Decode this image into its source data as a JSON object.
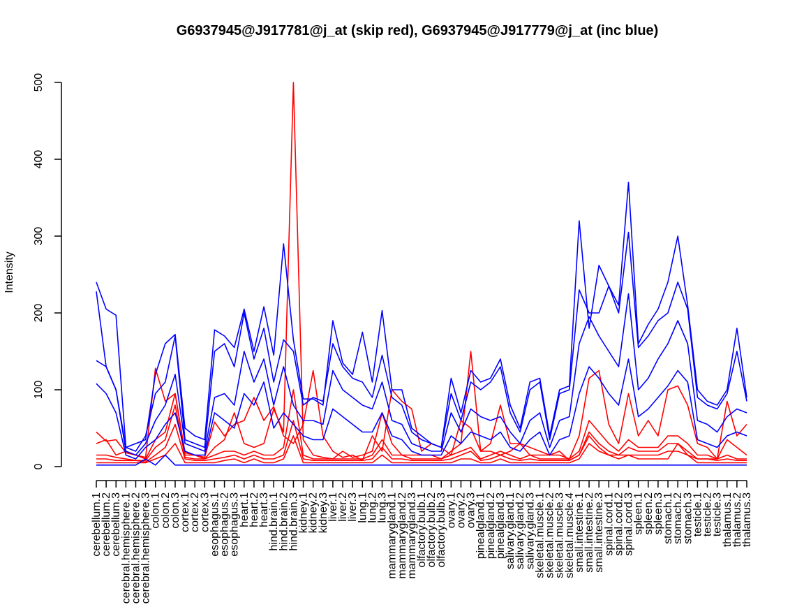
{
  "chart_data": {
    "type": "line",
    "title": "G6937945@J917781@j_at (skip red), G6937945@J917779@j_at (inc blue)",
    "xlabel": "",
    "ylabel": "Intensity",
    "ylim": [
      0,
      500
    ],
    "yticks": [
      0,
      100,
      200,
      300,
      400,
      500
    ],
    "grid": false,
    "legend": "none",
    "colors": {
      "skip": "#ff0000",
      "inc": "#0000ff",
      "axis": "#000000"
    },
    "categories": [
      "cerebellum.1",
      "cerebellum.2",
      "cerebellum.3",
      "cerebral.hemisphere.1",
      "cerebral.hemisphere.2",
      "cerebral.hemisphere.3",
      "colon.1",
      "colon.2",
      "colon.3",
      "cortex.1",
      "cortex.2",
      "cortex.3",
      "esophagus.1",
      "esophagus.2",
      "esophagus.3",
      "heart.1",
      "heart.2",
      "heart.3",
      "hind.brain.1",
      "hind.brain.2",
      "hind.brain.3",
      "kidney.1",
      "kidney.2",
      "kidney.3",
      "liver.1",
      "liver.2",
      "liver.3",
      "lung.1",
      "lung.2",
      "lung.3",
      "mammarygland.1",
      "mammarygland.2",
      "mammarygland.3",
      "olfactory.bulb.1",
      "olfactory.bulb.2",
      "olfactory.bulb.3",
      "ovary.1",
      "ovary.2",
      "ovary.3",
      "pinealgland.1",
      "pinealgland.2",
      "pinealgland.3",
      "salivary.gland.1",
      "salivary.gland.2",
      "salivary.gland.3",
      "skeletal.muscle.1",
      "skeletal.muscle.2",
      "skeletal.muscle.3",
      "skeletal.muscle.4",
      "small.intestine.1",
      "small.intestine.2",
      "small.intestine.3",
      "spinal.cord.1",
      "spinal.cord.2",
      "spinal.cord.3",
      "spleen.1",
      "spleen.2",
      "spleen.3",
      "stomach.1",
      "stomach.2",
      "stomach.3",
      "testicle.1",
      "testicle.2",
      "testicle.3",
      "thalamus.1",
      "thalamus.2",
      "thalamus.3"
    ],
    "series": [
      {
        "group": "skip",
        "values": [
          45,
          33,
          35,
          18,
          15,
          12,
          128,
          85,
          95,
          18,
          15,
          12,
          58,
          40,
          55,
          60,
          90,
          60,
          78,
          40,
          30,
          55,
          125,
          40,
          20,
          12,
          15,
          8,
          40,
          20,
          100,
          85,
          75,
          20,
          30,
          25,
          15,
          60,
          50,
          20,
          20,
          15,
          20,
          30,
          15,
          15,
          15,
          20,
          8,
          15,
          40,
          25,
          15,
          15,
          15,
          10,
          10,
          10,
          10,
          30,
          15,
          10,
          10,
          10,
          85,
          40,
          55
        ]
      },
      {
        "group": "skip",
        "values": [
          30,
          35,
          15,
          20,
          15,
          10,
          35,
          45,
          95,
          15,
          15,
          10,
          25,
          35,
          70,
          30,
          25,
          30,
          75,
          45,
          500,
          35,
          15,
          12,
          10,
          20,
          12,
          15,
          20,
          70,
          30,
          15,
          15,
          15,
          15,
          10,
          20,
          30,
          150,
          20,
          30,
          80,
          30,
          30,
          25,
          20,
          15,
          15,
          10,
          40,
          115,
          125,
          55,
          30,
          95,
          40,
          60,
          40,
          100,
          105,
          80,
          30,
          25,
          10,
          35,
          25,
          15
        ]
      },
      {
        "group": "skip",
        "values": [
          15,
          15,
          12,
          10,
          8,
          8,
          25,
          35,
          80,
          12,
          10,
          10,
          15,
          20,
          20,
          15,
          20,
          15,
          15,
          25,
          100,
          15,
          10,
          10,
          10,
          10,
          10,
          10,
          15,
          35,
          15,
          15,
          10,
          10,
          10,
          10,
          15,
          20,
          25,
          10,
          15,
          20,
          15,
          10,
          15,
          10,
          10,
          10,
          10,
          20,
          60,
          45,
          30,
          20,
          35,
          25,
          25,
          25,
          40,
          40,
          30,
          15,
          15,
          10,
          15,
          10,
          10
        ]
      },
      {
        "group": "skip",
        "values": [
          10,
          10,
          8,
          8,
          8,
          6,
          15,
          25,
          55,
          10,
          8,
          8,
          10,
          12,
          15,
          10,
          15,
          10,
          10,
          15,
          60,
          10,
          8,
          8,
          8,
          8,
          8,
          8,
          10,
          25,
          10,
          10,
          8,
          8,
          8,
          8,
          10,
          15,
          20,
          8,
          10,
          15,
          10,
          8,
          10,
          8,
          8,
          8,
          8,
          15,
          45,
          30,
          20,
          15,
          25,
          20,
          20,
          20,
          30,
          30,
          20,
          10,
          10,
          8,
          10,
          8,
          8
        ]
      },
      {
        "group": "skip",
        "values": [
          5,
          5,
          5,
          5,
          5,
          5,
          10,
          15,
          30,
          5,
          5,
          5,
          5,
          8,
          10,
          5,
          10,
          5,
          5,
          10,
          40,
          5,
          5,
          5,
          5,
          5,
          5,
          5,
          5,
          15,
          5,
          5,
          5,
          5,
          5,
          5,
          5,
          10,
          10,
          5,
          5,
          10,
          5,
          5,
          5,
          5,
          5,
          5,
          5,
          10,
          30,
          20,
          15,
          10,
          15,
          15,
          15,
          15,
          20,
          20,
          15,
          5,
          5,
          5,
          5,
          5,
          5
        ]
      },
      {
        "group": "inc",
        "values": [
          240,
          205,
          197,
          25,
          30,
          35,
          120,
          160,
          172,
          50,
          40,
          35,
          178,
          170,
          155,
          205,
          150,
          208,
          145,
          290,
          165,
          88,
          88,
          80,
          190,
          135,
          120,
          175,
          110,
          203,
          100,
          100,
          50,
          40,
          30,
          25,
          115,
          70,
          125,
          110,
          115,
          140,
          80,
          50,
          110,
          115,
          40,
          100,
          105,
          320,
          180,
          262,
          235,
          210,
          370,
          160,
          185,
          205,
          240,
          300,
          210,
          100,
          85,
          80,
          100,
          180,
          90
        ]
      },
      {
        "group": "inc",
        "values": [
          228,
          130,
          100,
          25,
          20,
          40,
          95,
          110,
          170,
          35,
          30,
          25,
          150,
          160,
          130,
          200,
          140,
          180,
          110,
          165,
          150,
          80,
          90,
          85,
          160,
          130,
          115,
          110,
          90,
          145,
          90,
          80,
          45,
          35,
          30,
          25,
          95,
          60,
          110,
          100,
          110,
          130,
          70,
          45,
          100,
          110,
          35,
          95,
          100,
          230,
          200,
          200,
          235,
          200,
          305,
          155,
          170,
          190,
          200,
          240,
          205,
          90,
          80,
          75,
          95,
          150,
          85
        ]
      },
      {
        "group": "inc",
        "values": [
          138,
          130,
          100,
          20,
          15,
          30,
          60,
          80,
          120,
          30,
          25,
          20,
          90,
          95,
          80,
          150,
          110,
          140,
          80,
          130,
          80,
          60,
          60,
          55,
          125,
          100,
          90,
          80,
          75,
          110,
          60,
          55,
          30,
          25,
          20,
          20,
          70,
          45,
          75,
          65,
          60,
          65,
          45,
          30,
          60,
          70,
          25,
          60,
          65,
          160,
          195,
          170,
          150,
          130,
          225,
          100,
          115,
          140,
          160,
          190,
          160,
          60,
          55,
          45,
          65,
          75,
          70
        ]
      },
      {
        "group": "inc",
        "values": [
          108,
          95,
          70,
          15,
          10,
          25,
          35,
          55,
          70,
          20,
          15,
          15,
          70,
          60,
          50,
          95,
          80,
          110,
          50,
          70,
          55,
          40,
          35,
          35,
          75,
          65,
          55,
          45,
          45,
          70,
          40,
          35,
          20,
          15,
          15,
          15,
          40,
          30,
          45,
          40,
          35,
          45,
          25,
          20,
          35,
          45,
          15,
          35,
          40,
          95,
          130,
          115,
          95,
          80,
          140,
          65,
          75,
          90,
          105,
          125,
          110,
          35,
          30,
          25,
          40,
          45,
          40
        ]
      },
      {
        "group": "inc",
        "values": [
          2,
          2,
          2,
          2,
          2,
          10,
          2,
          15,
          2,
          2,
          2,
          2,
          2,
          2,
          2,
          2,
          2,
          2,
          2,
          2,
          2,
          2,
          2,
          2,
          2,
          2,
          2,
          2,
          2,
          2,
          2,
          2,
          2,
          2,
          2,
          2,
          2,
          2,
          2,
          2,
          2,
          2,
          2,
          2,
          2,
          2,
          2,
          2,
          2,
          2,
          2,
          2,
          2,
          2,
          2,
          2,
          2,
          2,
          2,
          2,
          2,
          2,
          2,
          2,
          2,
          2,
          2
        ]
      }
    ]
  }
}
